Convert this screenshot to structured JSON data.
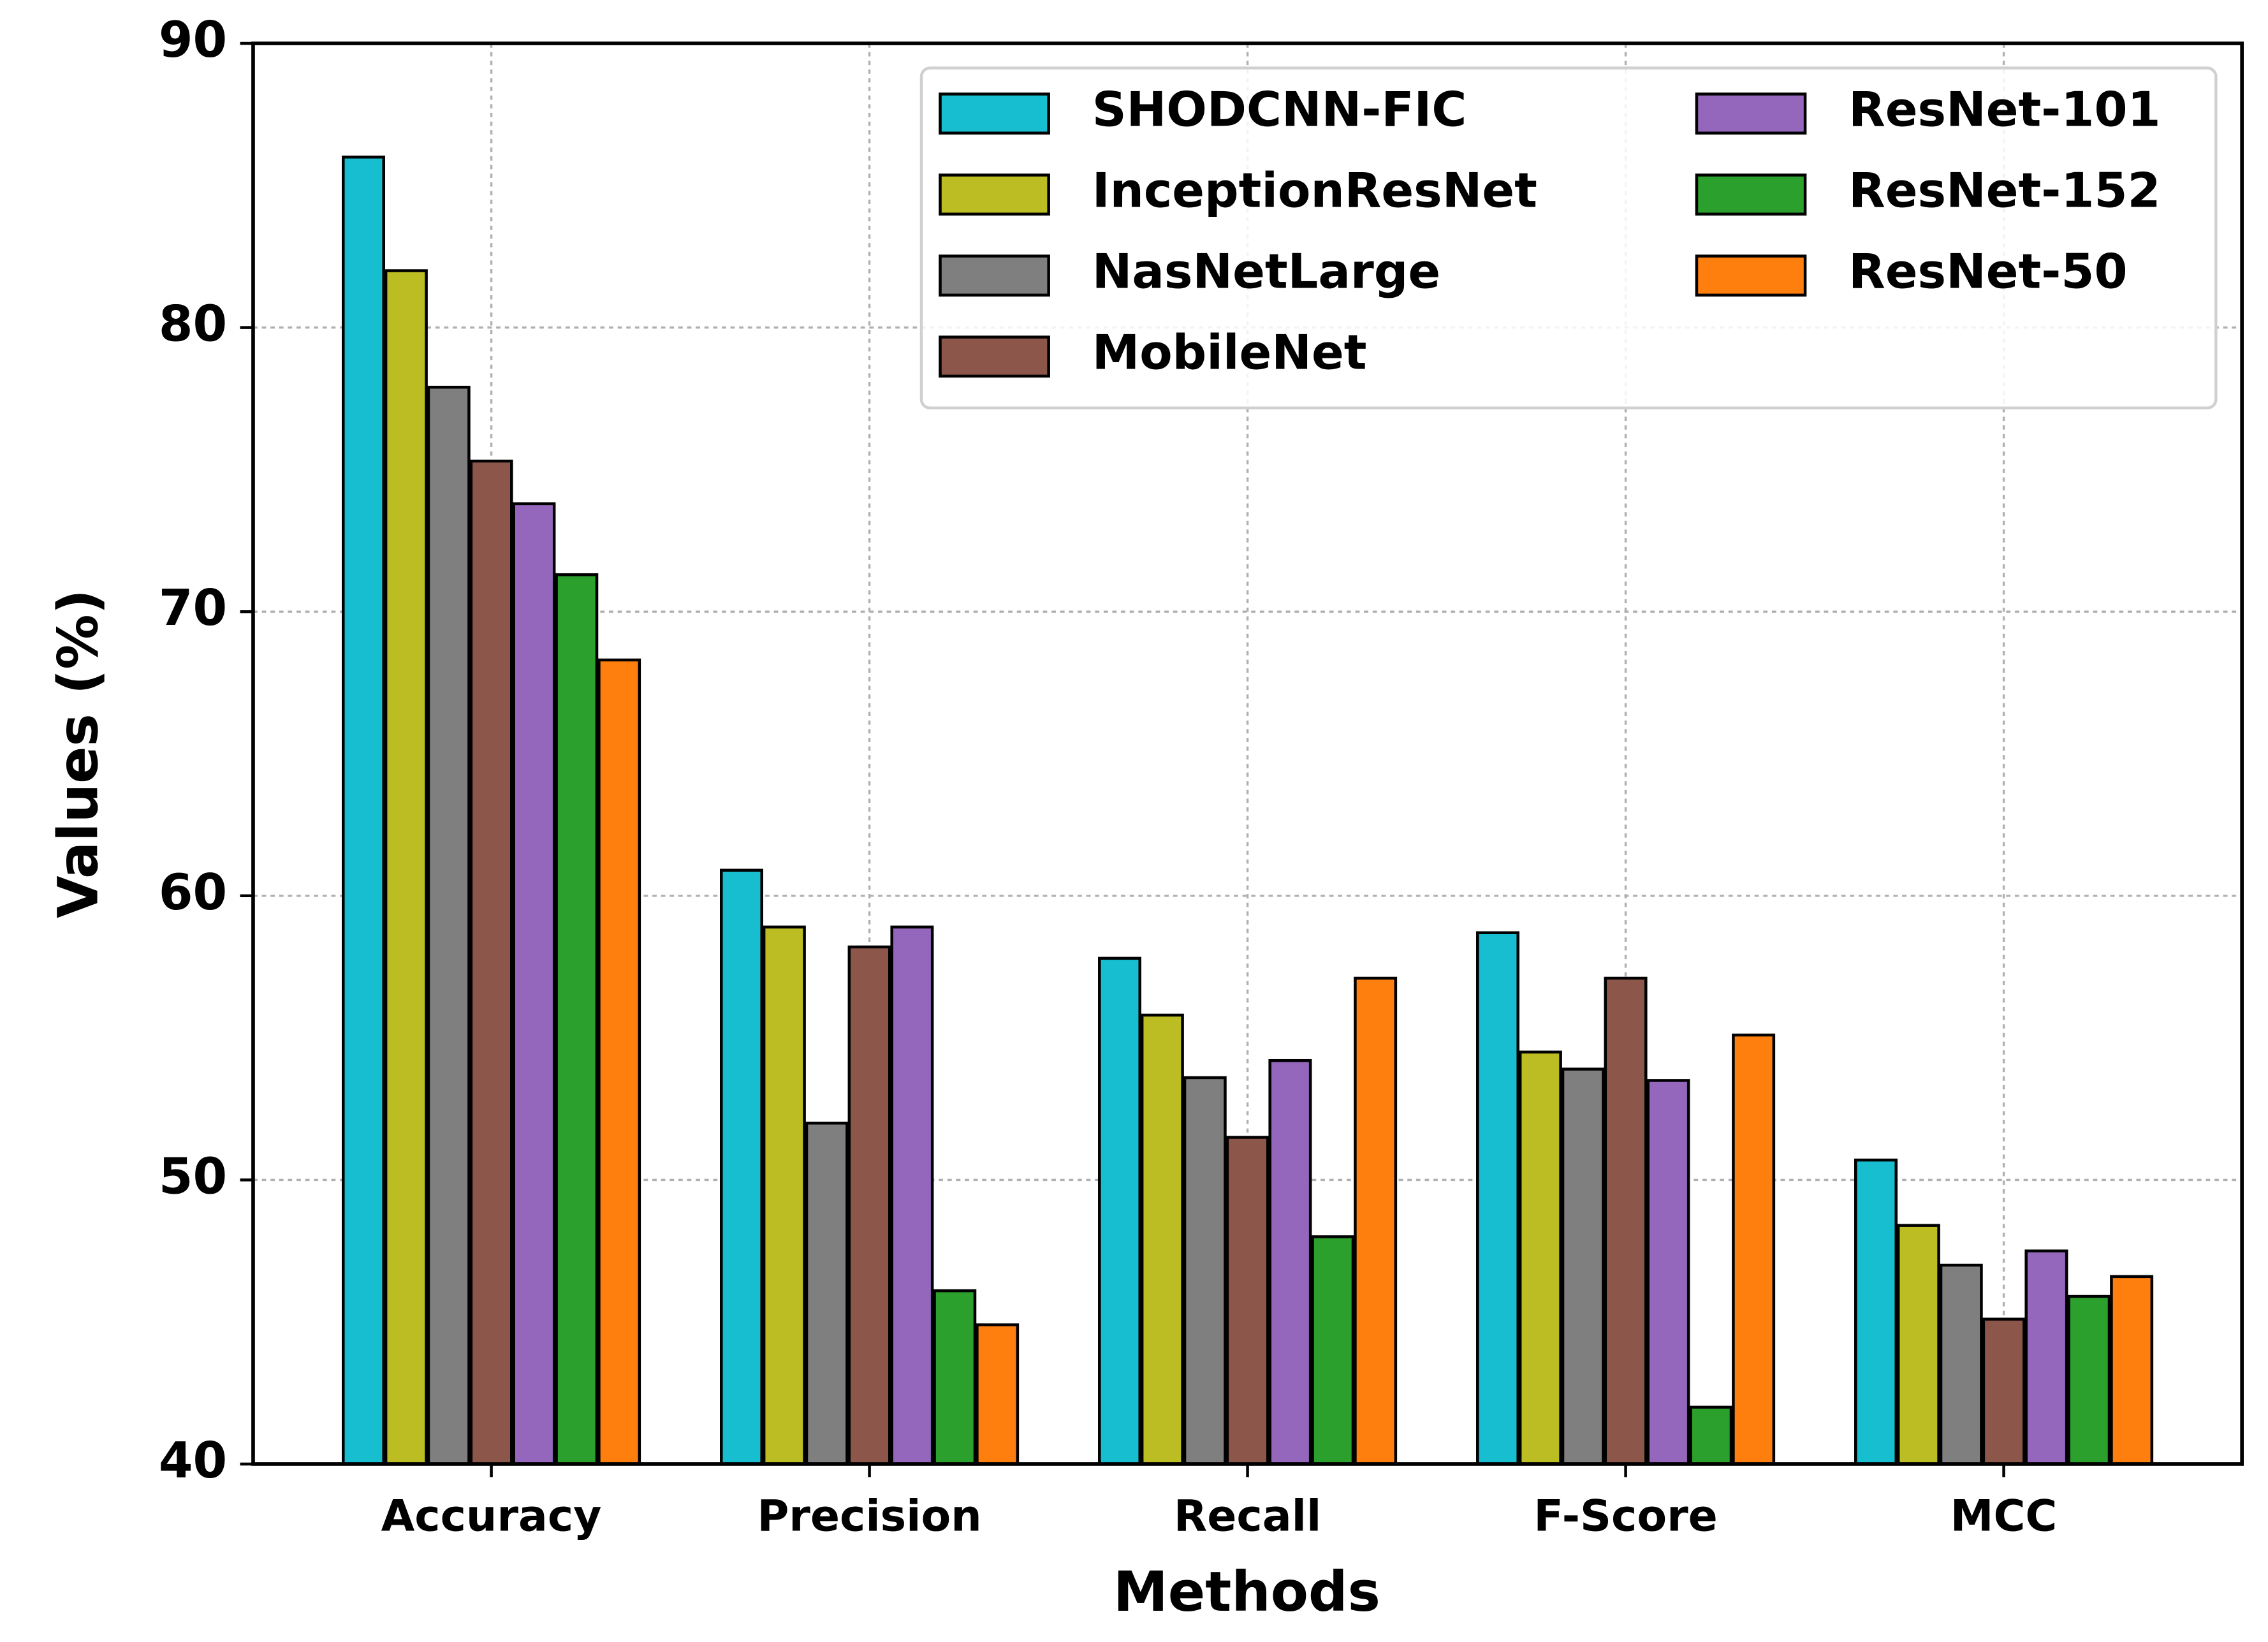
{
  "chart_data": {
    "type": "bar",
    "x_label": "Methods",
    "y_label": "Values (%)",
    "categories": [
      "Accuracy",
      "Precision",
      "Recall",
      "F-Score",
      "MCC"
    ],
    "series": [
      {
        "name": "SHODCNN-FIC",
        "color": "#17becf",
        "values": [
          86.0,
          60.9,
          57.8,
          58.7,
          50.7
        ]
      },
      {
        "name": "InceptionResNet",
        "color": "#bcbd22",
        "values": [
          82.0,
          58.9,
          55.8,
          54.5,
          48.4
        ]
      },
      {
        "name": "NasNetLarge",
        "color": "#7f7f7f",
        "values": [
          77.9,
          52.0,
          53.6,
          53.9,
          47.0
        ]
      },
      {
        "name": "MobileNet",
        "color": "#8c564b",
        "values": [
          75.3,
          58.2,
          51.5,
          57.1,
          45.1
        ]
      },
      {
        "name": "ResNet-101",
        "color": "#9467bd",
        "values": [
          73.8,
          58.9,
          54.2,
          53.5,
          47.5
        ]
      },
      {
        "name": "ResNet-152",
        "color": "#2ca02c",
        "values": [
          71.3,
          46.1,
          48.0,
          42.0,
          45.9
        ]
      },
      {
        "name": "ResNet-50",
        "color": "#ff7f0e",
        "values": [
          68.3,
          44.9,
          57.1,
          55.1,
          46.6
        ]
      }
    ],
    "ylim": [
      40,
      90
    ],
    "yticks": [
      40,
      50,
      60,
      70,
      80,
      90
    ],
    "grid": true,
    "legend": "upper right",
    "legend_columns": 2
  }
}
